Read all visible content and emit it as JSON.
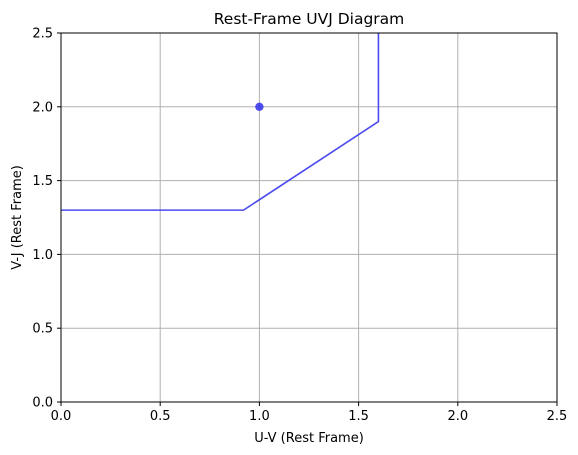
{
  "chart_data": {
    "type": "line",
    "title": "Rest-Frame UVJ Diagram",
    "xlabel": "U-V (Rest Frame)",
    "ylabel": "V-J (Rest Frame)",
    "xlim": [
      0,
      2.5
    ],
    "ylim": [
      0,
      2.5
    ],
    "xticks": [
      0,
      0.5,
      1.0,
      1.5,
      2.0,
      2.5
    ],
    "xtick_labels": [
      "0.0",
      "0.5",
      "1.0",
      "1.5",
      "2.0",
      "2.5"
    ],
    "yticks": [
      0,
      0.5,
      1.0,
      1.5,
      2.0,
      2.5
    ],
    "ytick_labels": [
      "0.0",
      "0.5",
      "1.0",
      "1.5",
      "2.0",
      "2.5"
    ],
    "grid": true,
    "series": [
      {
        "type": "line",
        "color": "#4a4aef",
        "x": [
          0.0,
          0.92,
          1.6,
          1.6
        ],
        "y": [
          1.3,
          1.3,
          1.9,
          2.5
        ]
      },
      {
        "type": "scatter",
        "color": "#3a3aee",
        "x": [
          1.0
        ],
        "y": [
          2.0
        ]
      }
    ]
  }
}
